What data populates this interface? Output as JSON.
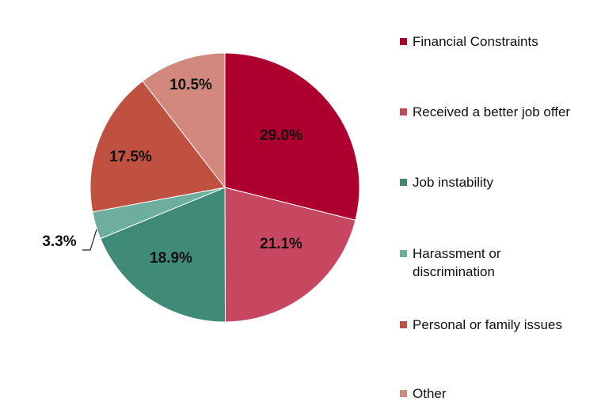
{
  "chart_data": {
    "type": "pie",
    "start_angle": "12 o'clock",
    "direction": "clockwise",
    "legend_position": "right",
    "slices": [
      {
        "label": "Financial Constraints",
        "value": 29.0,
        "data_label": "29.0%",
        "color": "#AD002E"
      },
      {
        "label": "Received a better job offer",
        "value": 21.1,
        "data_label": "21.1%",
        "color": "#C6475F"
      },
      {
        "label": "Job instability",
        "value": 18.9,
        "data_label": "18.9%",
        "color": "#3F8B77"
      },
      {
        "label": "Harassment or discrimination",
        "value": 3.3,
        "data_label": "3.3%",
        "color": "#6DAF9C"
      },
      {
        "label": "Personal or family issues",
        "value": 17.5,
        "data_label": "17.5%",
        "color": "#C0503F"
      },
      {
        "label": "Other",
        "value": 10.5,
        "data_label": "10.5%",
        "color": "#D2887D"
      }
    ]
  }
}
